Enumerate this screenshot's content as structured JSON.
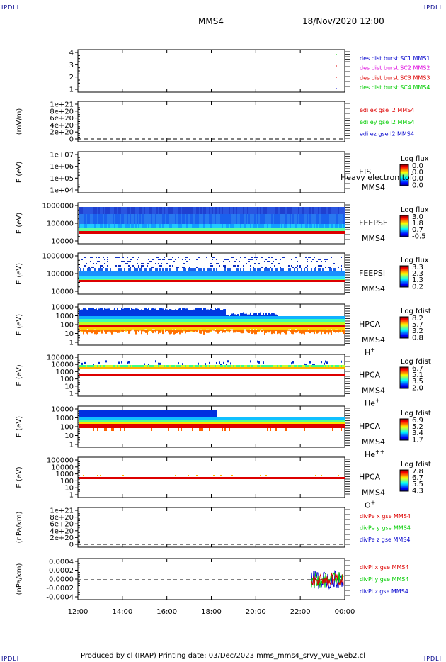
{
  "corners": {
    "tl": "IPDLI",
    "tr": "IPDLI",
    "bl": "IPDLI",
    "br": "IPDLI"
  },
  "header": {
    "spacecraft": "MMS4",
    "datetime": "18/Nov/2020 12:00"
  },
  "footer": "Produced by cl (IRAP)    Printing date: 03/Dec/2023    mms_mms4_srvy_vue_web2.cl",
  "colors": {
    "frame": "#000000",
    "blue": "#0000cc",
    "red": "#dd0000",
    "green": "#00cc00",
    "magenta": "#dd00dd"
  },
  "chart_data": {
    "type": "heatmap",
    "x_ticks": [
      "12:00",
      "14:00",
      "16:00",
      "18:00",
      "20:00",
      "22:00",
      "00:00"
    ],
    "panels": [
      {
        "id": "burst",
        "ylabel": "",
        "yticks": [
          "1",
          "2",
          "3",
          "4"
        ],
        "legend": [
          {
            "text": "des dist burst SC1 MMS1",
            "color": "#0000cc"
          },
          {
            "text": "des dist burst SC2 MMS2",
            "color": "#dd00dd"
          },
          {
            "text": "des dist burst SC3 MMS3",
            "color": "#dd0000"
          },
          {
            "text": "des dist burst SC4 MMS4",
            "color": "#00cc00"
          }
        ]
      },
      {
        "id": "edi",
        "ylabel": "(mV/m)",
        "yticks": [
          "0",
          "2e+20",
          "4e+20",
          "6e+20",
          "8e+20",
          "1e+21"
        ],
        "legend": [
          {
            "text": "edi ex gse l2 MMS4",
            "color": "#dd0000"
          },
          {
            "text": "edi ey gse l2 MMS4",
            "color": "#00cc00"
          },
          {
            "text": "edi ez gse l2 MMS4",
            "color": "#0000cc"
          }
        ]
      },
      {
        "id": "eis",
        "ylabel": "E (eV)",
        "yticks": [
          "1e+04",
          "1e+05",
          "1e+06",
          "1e+07"
        ],
        "instrument": "EIS",
        "sc": "MMS4",
        "overlay": "Heavy electron tof",
        "cbar_title": "Log flux",
        "cbar_ticks": [
          "0.0",
          "0.0",
          "0.0",
          "0.0"
        ]
      },
      {
        "id": "feepse",
        "ylabel": "E (eV)",
        "yticks": [
          "10000",
          "100000",
          "1000000"
        ],
        "instrument": "FEEPSE",
        "sc": "MMS4",
        "cbar_title": "Log flux",
        "cbar_ticks": [
          "3.0",
          "1.8",
          "0.7",
          "-0.5"
        ]
      },
      {
        "id": "feepsi",
        "ylabel": "E (eV)",
        "yticks": [
          "10000",
          "100000",
          "1000000"
        ],
        "instrument": "FEEPSI",
        "sc": "MMS4",
        "cbar_title": "Log flux",
        "cbar_ticks": [
          "3.3",
          "2.3",
          "1.3",
          "0.2"
        ]
      },
      {
        "id": "hpca_h",
        "ylabel": "E (eV)",
        "yticks": [
          "1",
          "10",
          "100",
          "1000",
          "10000"
        ],
        "instrument": "HPCA",
        "sc": "MMS4",
        "species": "H",
        "charge": "+",
        "cbar_title": "Log fdist",
        "cbar_ticks": [
          "8.2",
          "5.7",
          "3.2",
          "0.8"
        ]
      },
      {
        "id": "hpca_he",
        "ylabel": "E (eV)",
        "yticks": [
          "1",
          "10",
          "100",
          "1000",
          "10000",
          "100000"
        ],
        "instrument": "HPCA",
        "sc": "MMS4",
        "species": "He",
        "charge": "+",
        "cbar_title": "Log fdist",
        "cbar_ticks": [
          "6.7",
          "5.1",
          "3.5",
          "2.0"
        ]
      },
      {
        "id": "hpca_he2",
        "ylabel": "E (eV)",
        "yticks": [
          "1",
          "10",
          "100",
          "1000",
          "10000"
        ],
        "instrument": "HPCA",
        "sc": "MMS4",
        "species": "He",
        "charge": "++",
        "cbar_title": "Log fdist",
        "cbar_ticks": [
          "6.9",
          "5.2",
          "3.4",
          "1.7"
        ]
      },
      {
        "id": "hpca_o",
        "ylabel": "E (eV)",
        "yticks": [
          "1",
          "10",
          "100",
          "1000",
          "10000",
          "100000"
        ],
        "instrument": "HPCA",
        "sc": "MMS4",
        "species": "O",
        "charge": "+",
        "cbar_title": "Log fdist",
        "cbar_ticks": [
          "7.8",
          "6.7",
          "5.5",
          "4.3"
        ]
      },
      {
        "id": "divpe",
        "ylabel": "(nPa/km)",
        "yticks": [
          "0",
          "2e+20",
          "4e+20",
          "6e+20",
          "8e+20",
          "1e+21"
        ],
        "legend": [
          {
            "text": "divPe x gse MMS4",
            "color": "#dd0000"
          },
          {
            "text": "divPe y gse MMS4",
            "color": "#00cc00"
          },
          {
            "text": "divPe z gse MMS4",
            "color": "#0000cc"
          }
        ]
      },
      {
        "id": "divpi",
        "ylabel": "(nPa/km)",
        "yticks": [
          "-0.0004",
          "-0.0002",
          "0.0000",
          "0.0002",
          "0.0004"
        ],
        "legend": [
          {
            "text": "divPi x gse MMS4",
            "color": "#dd0000"
          },
          {
            "text": "divPi y gse MMS4",
            "color": "#00cc00"
          },
          {
            "text": "divPi z gse MMS4",
            "color": "#0000cc"
          }
        ]
      }
    ]
  }
}
